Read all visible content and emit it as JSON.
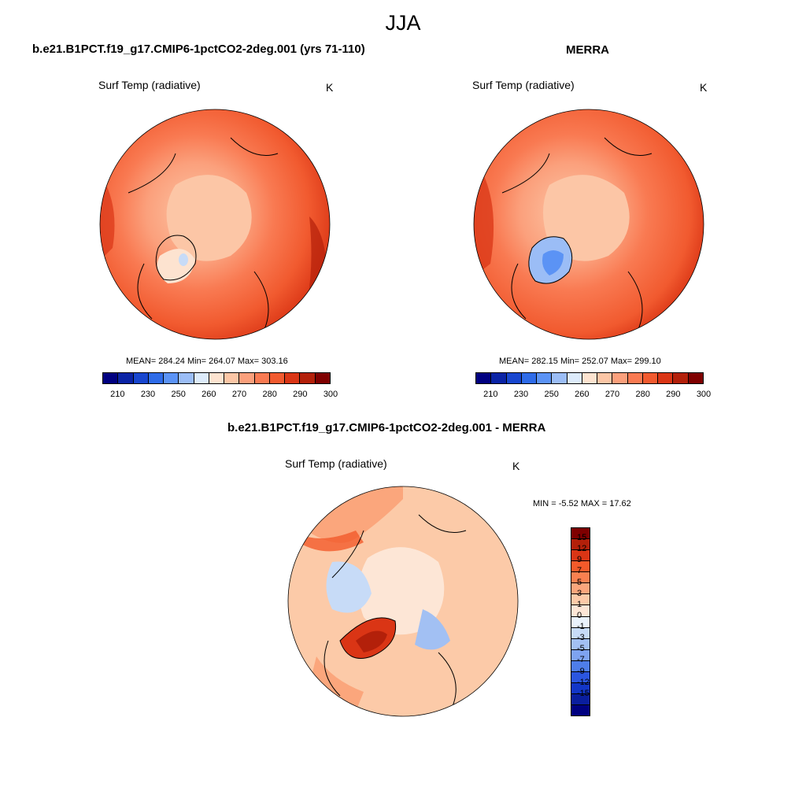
{
  "title": "JJA",
  "panels": [
    {
      "id": "model",
      "title": "b.e21.B1PCT.f19_g17.CMIP6-1pctCO2-2deg.001 (yrs 71-110)",
      "variable": "Surf Temp (radiative)",
      "units": "K",
      "stats": "MEAN= 284.24  Min= 264.07  Max= 303.16",
      "mean": 284.24,
      "min": 264.07,
      "max": 303.16
    },
    {
      "id": "obs",
      "title": "MERRA",
      "variable": "Surf Temp (radiative)",
      "units": "K",
      "stats": "MEAN= 282.15  Min= 252.07  Max= 299.10",
      "mean": 282.15,
      "min": 252.07,
      "max": 299.1
    },
    {
      "id": "diff",
      "title": "b.e21.B1PCT.f19_g17.CMIP6-1pctCO2-2deg.001 - MERRA",
      "variable": "Surf Temp (radiative)",
      "units": "K",
      "stats": "MIN =  -5.52 MAX =  17.62",
      "min": -5.52,
      "max": 17.62
    }
  ],
  "abs_colorbar": {
    "colors": [
      "#000080",
      "#0a23a5",
      "#1846cf",
      "#2e6be8",
      "#5b93f5",
      "#9bbdf6",
      "#ddebfb",
      "#fde3d0",
      "#fcc6a6",
      "#fba07c",
      "#f97a52",
      "#f15a2f",
      "#da3515",
      "#b3200a",
      "#7f0000"
    ],
    "tick_labels": [
      "210",
      "230",
      "250",
      "260",
      "270",
      "280",
      "290",
      "300"
    ]
  },
  "diff_colorbar": {
    "colors": [
      "#7f0000",
      "#b3200a",
      "#da3515",
      "#f35a2a",
      "#f98050",
      "#fba67c",
      "#fccaa8",
      "#fde6d6",
      "#eaf2fc",
      "#c7dbf7",
      "#a2c0f3",
      "#7ea3f0",
      "#4e7de9",
      "#2b56e0",
      "#1236c8",
      "#0a1e9e",
      "#000080"
    ],
    "tick_labels": [
      "15",
      "12",
      "9",
      "7",
      "5",
      "3",
      "1",
      "0",
      "-1",
      "-3",
      "-5",
      "-7",
      "-9",
      "-12",
      "-15"
    ]
  }
}
